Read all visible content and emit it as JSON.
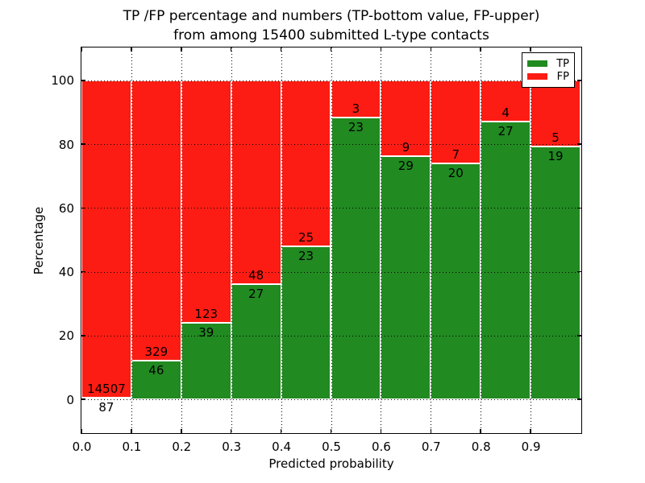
{
  "title": {
    "line1": "TP /FP percentage and numbers (TP-bottom value, FP-upper)",
    "line2": "from among 15400 submitted L-type contacts"
  },
  "legend": {
    "items": [
      {
        "label": "TP",
        "color": "#218a21"
      },
      {
        "label": "FP",
        "color": "#fd1c13"
      }
    ]
  },
  "colors": {
    "tp": "#218a21",
    "fp": "#fd1c13",
    "bar_edge": "#ffffff",
    "grid": "#000000",
    "spine": "#000000",
    "background": "#ffffff"
  },
  "chart_data": {
    "type": "bar",
    "stacked": true,
    "normalized": "percent_of_bin",
    "title": "TP /FP percentage and numbers (TP-bottom value, FP-upper) from among 15400 submitted L-type contacts",
    "total_submitted": 15400,
    "xlabel": "Predicted probability",
    "ylabel": "Percentage",
    "xlim": [
      0.0,
      1.0
    ],
    "ylim": [
      -10.3,
      110.3
    ],
    "bin_width": 0.1,
    "xticks": [
      "0.0",
      "0.1",
      "0.2",
      "0.3",
      "0.4",
      "0.5",
      "0.6",
      "0.7",
      "0.8",
      "0.9"
    ],
    "yticks": [
      "0",
      "20",
      "40",
      "60",
      "80",
      "100"
    ],
    "grid": "dotted",
    "legend_position": "upper right",
    "categories": [
      "0.0-0.1",
      "0.1-0.2",
      "0.2-0.3",
      "0.3-0.4",
      "0.4-0.5",
      "0.5-0.6",
      "0.6-0.7",
      "0.7-0.8",
      "0.8-0.9",
      "0.9-1.0"
    ],
    "series": [
      {
        "name": "TP",
        "color": "#218a21",
        "counts": [
          87,
          46,
          39,
          27,
          23,
          23,
          29,
          20,
          27,
          19
        ]
      },
      {
        "name": "FP",
        "color": "#fd1c13",
        "counts": [
          14507,
          329,
          123,
          48,
          25,
          3,
          9,
          7,
          4,
          5
        ]
      }
    ]
  }
}
